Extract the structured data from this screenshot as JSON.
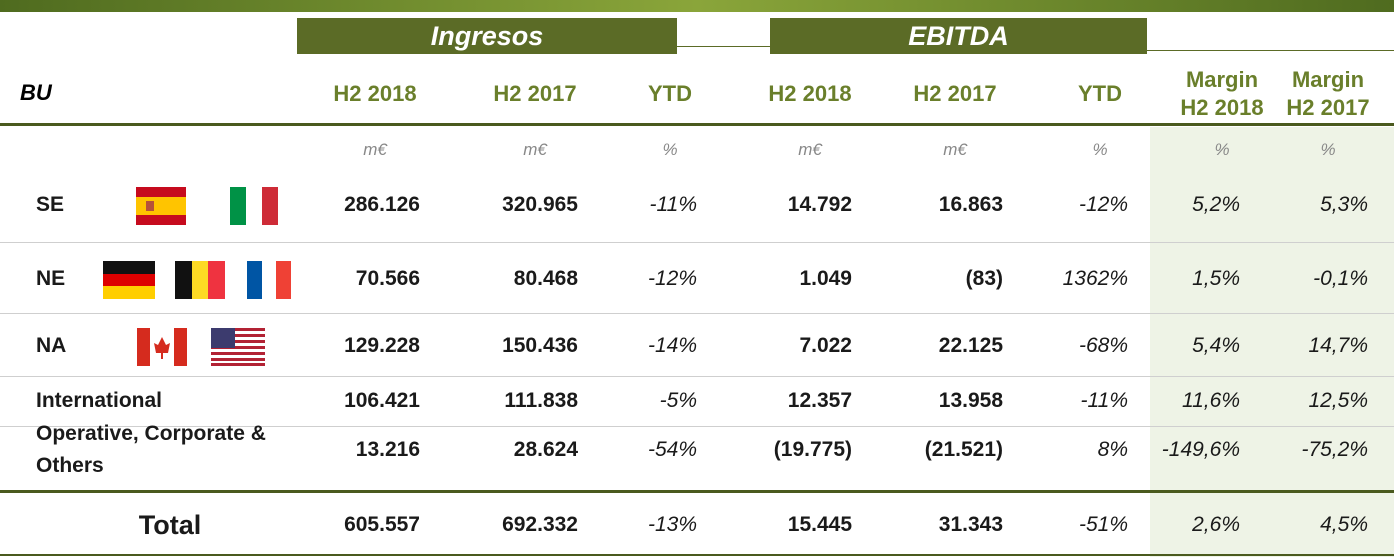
{
  "header": {
    "bu": "BU",
    "groups": [
      "Ingresos",
      "EBITDA"
    ],
    "columns": [
      "H2 2018",
      "H2 2017",
      "YTD",
      "H2 2018",
      "H2 2017",
      "YTD",
      "Margin H2 2018",
      "Margin H2 2017"
    ],
    "units": [
      "m€",
      "m€",
      "%",
      "m€",
      "m€",
      "%",
      "%",
      "%"
    ]
  },
  "table": {
    "rows": [
      {
        "label": "SE",
        "cells": [
          "286.126",
          "320.965",
          "-11%",
          "14.792",
          "16.863",
          "-12%",
          "5,2%",
          "5,3%"
        ]
      },
      {
        "label": "NE",
        "cells": [
          "70.566",
          "80.468",
          "-12%",
          "1.049",
          "(83)",
          "1362%",
          "1,5%",
          "-0,1%"
        ]
      },
      {
        "label": "NA",
        "cells": [
          "129.228",
          "150.436",
          "-14%",
          "7.022",
          "22.125",
          "-68%",
          "5,4%",
          "14,7%"
        ]
      },
      {
        "label": "International",
        "cells": [
          "106.421",
          "111.838",
          "-5%",
          "12.357",
          "13.958",
          "-11%",
          "11,6%",
          "12,5%"
        ]
      },
      {
        "label": "Operative, Corporate & Others",
        "cells": [
          "13.216",
          "28.624",
          "-54%",
          "(19.775)",
          "(21.521)",
          "8%",
          "-149,6%",
          "-75,2%"
        ]
      },
      {
        "label": "Total",
        "cells": [
          "605.557",
          "692.332",
          "-13%",
          "15.445",
          "31.343",
          "-51%",
          "2,6%",
          "4,5%"
        ]
      }
    ]
  }
}
